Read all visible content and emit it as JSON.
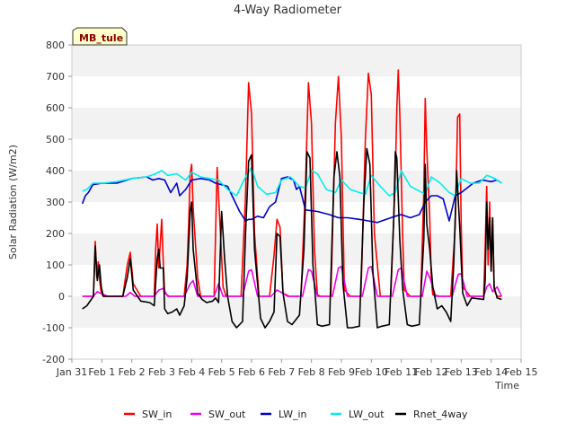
{
  "chart_data": {
    "type": "line",
    "title": "4-Way Radiometer",
    "xlabel": "Time",
    "ylabel": "Solar Radiation (W/m2)",
    "annotation": "MB_tule",
    "xlim": [
      0,
      15
    ],
    "ylim": [
      -200,
      800
    ],
    "x_ticks": [
      {
        "x": 0,
        "label": "Jan 31"
      },
      {
        "x": 1,
        "label": "Feb 1"
      },
      {
        "x": 2,
        "label": "Feb 2"
      },
      {
        "x": 3,
        "label": "Feb 3"
      },
      {
        "x": 4,
        "label": "Feb 4"
      },
      {
        "x": 5,
        "label": "Feb 5"
      },
      {
        "x": 6,
        "label": "Feb 6"
      },
      {
        "x": 7,
        "label": "Feb 7"
      },
      {
        "x": 8,
        "label": "Feb 8"
      },
      {
        "x": 9,
        "label": "Feb 9"
      },
      {
        "x": 10,
        "label": "Feb 10"
      },
      {
        "x": 11,
        "label": "Feb 11"
      },
      {
        "x": 12,
        "label": "Feb 12"
      },
      {
        "x": 13,
        "label": "Feb 13"
      },
      {
        "x": 14,
        "label": "Feb 14"
      },
      {
        "x": 15,
        "label": "Feb 15"
      }
    ],
    "y_ticks": [
      -200,
      -100,
      0,
      100,
      200,
      300,
      400,
      500,
      600,
      700,
      800
    ],
    "legend_position": "bottom-center",
    "series": [
      {
        "name": "SW_in",
        "color": "#ff0000",
        "x": [
          0.35,
          0.72,
          0.78,
          0.83,
          0.88,
          0.93,
          0.98,
          1.05,
          1.2,
          1.7,
          1.85,
          1.95,
          2.05,
          2.3,
          2.75,
          2.8,
          2.85,
          2.9,
          3.0,
          3.05,
          3.1,
          3.25,
          3.75,
          3.85,
          3.9,
          3.95,
          4.0,
          4.05,
          4.2,
          4.3,
          4.75,
          4.85,
          4.95,
          5.05,
          5.15,
          5.3,
          5.65,
          5.8,
          5.9,
          6.0,
          6.1,
          6.25,
          6.6,
          6.75,
          6.85,
          6.95,
          7.05,
          7.25,
          7.65,
          7.8,
          7.9,
          8.0,
          8.1,
          8.2,
          8.3,
          8.65,
          8.8,
          8.9,
          9.0,
          9.1,
          9.3,
          9.65,
          9.8,
          9.9,
          10.0,
          10.1,
          10.3,
          10.65,
          10.8,
          10.85,
          10.9,
          10.95,
          11.05,
          11.1,
          11.3,
          11.65,
          11.75,
          11.8,
          11.85,
          11.95,
          12.0,
          12.05,
          12.3,
          12.65,
          12.8,
          12.88,
          12.95,
          13.0,
          13.05,
          13.3,
          13.75,
          13.8,
          13.85,
          13.9,
          13.95,
          14.0,
          14.05,
          14.1,
          14.2,
          14.35
        ],
        "y": [
          0,
          0,
          175,
          60,
          110,
          50,
          10,
          0,
          0,
          0,
          100,
          140,
          40,
          0,
          0,
          150,
          230,
          90,
          245,
          110,
          10,
          0,
          0,
          100,
          230,
          390,
          420,
          280,
          60,
          0,
          0,
          410,
          220,
          30,
          0,
          0,
          0,
          320,
          680,
          580,
          200,
          0,
          0,
          130,
          245,
          220,
          10,
          0,
          0,
          350,
          680,
          550,
          150,
          5,
          0,
          0,
          550,
          700,
          500,
          20,
          0,
          0,
          500,
          710,
          640,
          200,
          0,
          0,
          380,
          600,
          720,
          580,
          180,
          20,
          0,
          0,
          330,
          630,
          470,
          250,
          60,
          5,
          0,
          0,
          220,
          570,
          580,
          230,
          30,
          0,
          0,
          150,
          350,
          100,
          300,
          80,
          250,
          20,
          0,
          0
        ]
      },
      {
        "name": "SW_out",
        "color": "#ee00ee",
        "x": [
          0.35,
          0.72,
          0.85,
          1.0,
          1.2,
          1.8,
          1.95,
          2.1,
          2.75,
          2.9,
          3.05,
          3.2,
          3.75,
          3.95,
          4.05,
          4.2,
          4.75,
          4.9,
          5.05,
          5.7,
          5.9,
          6.0,
          6.2,
          6.65,
          6.85,
          6.95,
          7.2,
          7.7,
          7.9,
          8.0,
          8.2,
          8.7,
          8.9,
          9.0,
          9.2,
          9.7,
          9.9,
          10.0,
          10.2,
          10.7,
          10.9,
          11.0,
          11.2,
          11.7,
          11.85,
          11.95,
          12.15,
          12.7,
          12.9,
          13.0,
          13.2,
          13.75,
          13.85,
          13.95,
          14.05,
          14.2,
          14.35
        ],
        "y": [
          0,
          0,
          15,
          8,
          0,
          0,
          12,
          0,
          0,
          20,
          25,
          0,
          0,
          40,
          50,
          0,
          0,
          40,
          0,
          0,
          80,
          85,
          0,
          0,
          20,
          15,
          0,
          0,
          85,
          80,
          0,
          0,
          90,
          95,
          0,
          0,
          90,
          95,
          0,
          0,
          85,
          90,
          0,
          0,
          80,
          60,
          0,
          0,
          70,
          72,
          0,
          0,
          30,
          40,
          15,
          30,
          0
        ]
      },
      {
        "name": "LW_in",
        "color": "#0000cc",
        "x": [
          0.35,
          0.45,
          0.55,
          0.7,
          1.0,
          1.5,
          2.0,
          2.5,
          2.7,
          2.9,
          3.1,
          3.3,
          3.5,
          3.6,
          3.8,
          4.0,
          4.3,
          4.6,
          4.8,
          5.0,
          5.2,
          5.4,
          5.6,
          5.8,
          5.9,
          6.0,
          6.2,
          6.4,
          6.6,
          6.8,
          7.0,
          7.2,
          7.4,
          7.5,
          7.6,
          7.8,
          8.2,
          8.6,
          8.9,
          9.2,
          9.6,
          9.9,
          10.2,
          10.5,
          10.8,
          11.0,
          11.3,
          11.6,
          11.8,
          12.0,
          12.2,
          12.4,
          12.6,
          12.8,
          13.0,
          13.2,
          13.4,
          13.7,
          14.0,
          14.2,
          14.35
        ],
        "y": [
          295,
          320,
          330,
          355,
          360,
          360,
          375,
          380,
          370,
          375,
          370,
          330,
          360,
          320,
          340,
          370,
          375,
          370,
          360,
          355,
          350,
          310,
          270,
          240,
          245,
          245,
          255,
          250,
          285,
          300,
          375,
          380,
          370,
          340,
          350,
          275,
          270,
          260,
          250,
          250,
          245,
          240,
          235,
          245,
          255,
          260,
          250,
          260,
          300,
          320,
          320,
          310,
          240,
          320,
          330,
          345,
          360,
          370,
          365,
          370,
          360
        ]
      },
      {
        "name": "LW_out",
        "color": "#00eeee",
        "x": [
          0.35,
          0.5,
          0.7,
          1.0,
          1.5,
          2.0,
          2.5,
          2.8,
          3.0,
          3.2,
          3.5,
          3.8,
          4.0,
          4.3,
          4.6,
          4.9,
          5.2,
          5.5,
          5.8,
          6.0,
          6.2,
          6.5,
          6.8,
          7.0,
          7.3,
          7.6,
          7.8,
          8.0,
          8.2,
          8.5,
          8.8,
          9.0,
          9.3,
          9.6,
          9.8,
          10.0,
          10.3,
          10.6,
          10.8,
          11.0,
          11.3,
          11.6,
          11.8,
          12.0,
          12.3,
          12.6,
          12.8,
          13.0,
          13.3,
          13.6,
          13.85,
          14.0,
          14.2,
          14.35
        ],
        "y": [
          335,
          340,
          360,
          360,
          365,
          375,
          380,
          390,
          400,
          385,
          390,
          370,
          395,
          380,
          375,
          370,
          340,
          320,
          380,
          410,
          350,
          325,
          330,
          370,
          380,
          350,
          345,
          400,
          390,
          340,
          330,
          370,
          340,
          330,
          325,
          385,
          350,
          320,
          330,
          400,
          350,
          335,
          325,
          380,
          360,
          330,
          320,
          375,
          360,
          360,
          385,
          380,
          370,
          360
        ]
      },
      {
        "name": "Rnet_4way",
        "color": "#000000",
        "x": [
          0.35,
          0.5,
          0.72,
          0.78,
          0.85,
          0.92,
          0.98,
          1.05,
          1.2,
          1.7,
          1.85,
          1.95,
          2.05,
          2.3,
          2.6,
          2.75,
          2.85,
          2.9,
          2.95,
          3.05,
          3.1,
          3.2,
          3.35,
          3.5,
          3.6,
          3.75,
          3.85,
          3.95,
          4.0,
          4.05,
          4.2,
          4.35,
          4.5,
          4.7,
          4.8,
          4.9,
          5.0,
          5.1,
          5.2,
          5.35,
          5.5,
          5.7,
          5.8,
          5.9,
          6.0,
          6.1,
          6.3,
          6.45,
          6.6,
          6.75,
          6.85,
          6.95,
          7.05,
          7.2,
          7.35,
          7.6,
          7.75,
          7.85,
          7.95,
          8.05,
          8.2,
          8.35,
          8.6,
          8.75,
          8.85,
          8.95,
          9.05,
          9.2,
          9.35,
          9.6,
          9.75,
          9.85,
          9.95,
          10.05,
          10.2,
          10.35,
          10.6,
          10.75,
          10.8,
          10.85,
          10.95,
          11.05,
          11.2,
          11.35,
          11.6,
          11.75,
          11.8,
          11.85,
          11.95,
          12.05,
          12.2,
          12.35,
          12.5,
          12.65,
          12.75,
          12.85,
          12.95,
          13.05,
          13.2,
          13.35,
          13.75,
          13.8,
          13.85,
          13.9,
          13.95,
          14.0,
          14.05,
          14.1,
          14.2,
          14.35
        ],
        "y": [
          -40,
          -30,
          0,
          160,
          50,
          100,
          30,
          0,
          0,
          0,
          60,
          120,
          20,
          -15,
          -20,
          -30,
          120,
          150,
          90,
          90,
          -40,
          -55,
          -50,
          -40,
          -60,
          -30,
          60,
          270,
          300,
          150,
          10,
          -10,
          -20,
          -15,
          -5,
          -20,
          270,
          120,
          0,
          -80,
          -100,
          -80,
          200,
          430,
          450,
          150,
          -70,
          -100,
          -80,
          -50,
          200,
          190,
          10,
          -80,
          -90,
          -60,
          150,
          460,
          440,
          100,
          -90,
          -95,
          -90,
          380,
          460,
          380,
          40,
          -100,
          -100,
          -95,
          300,
          470,
          420,
          80,
          -100,
          -95,
          -90,
          250,
          460,
          440,
          180,
          20,
          -90,
          -95,
          -90,
          180,
          420,
          230,
          150,
          30,
          -40,
          -30,
          -50,
          -80,
          100,
          400,
          220,
          10,
          -30,
          -5,
          -10,
          50,
          300,
          150,
          250,
          80,
          250,
          30,
          -5,
          -10
        ]
      }
    ]
  }
}
